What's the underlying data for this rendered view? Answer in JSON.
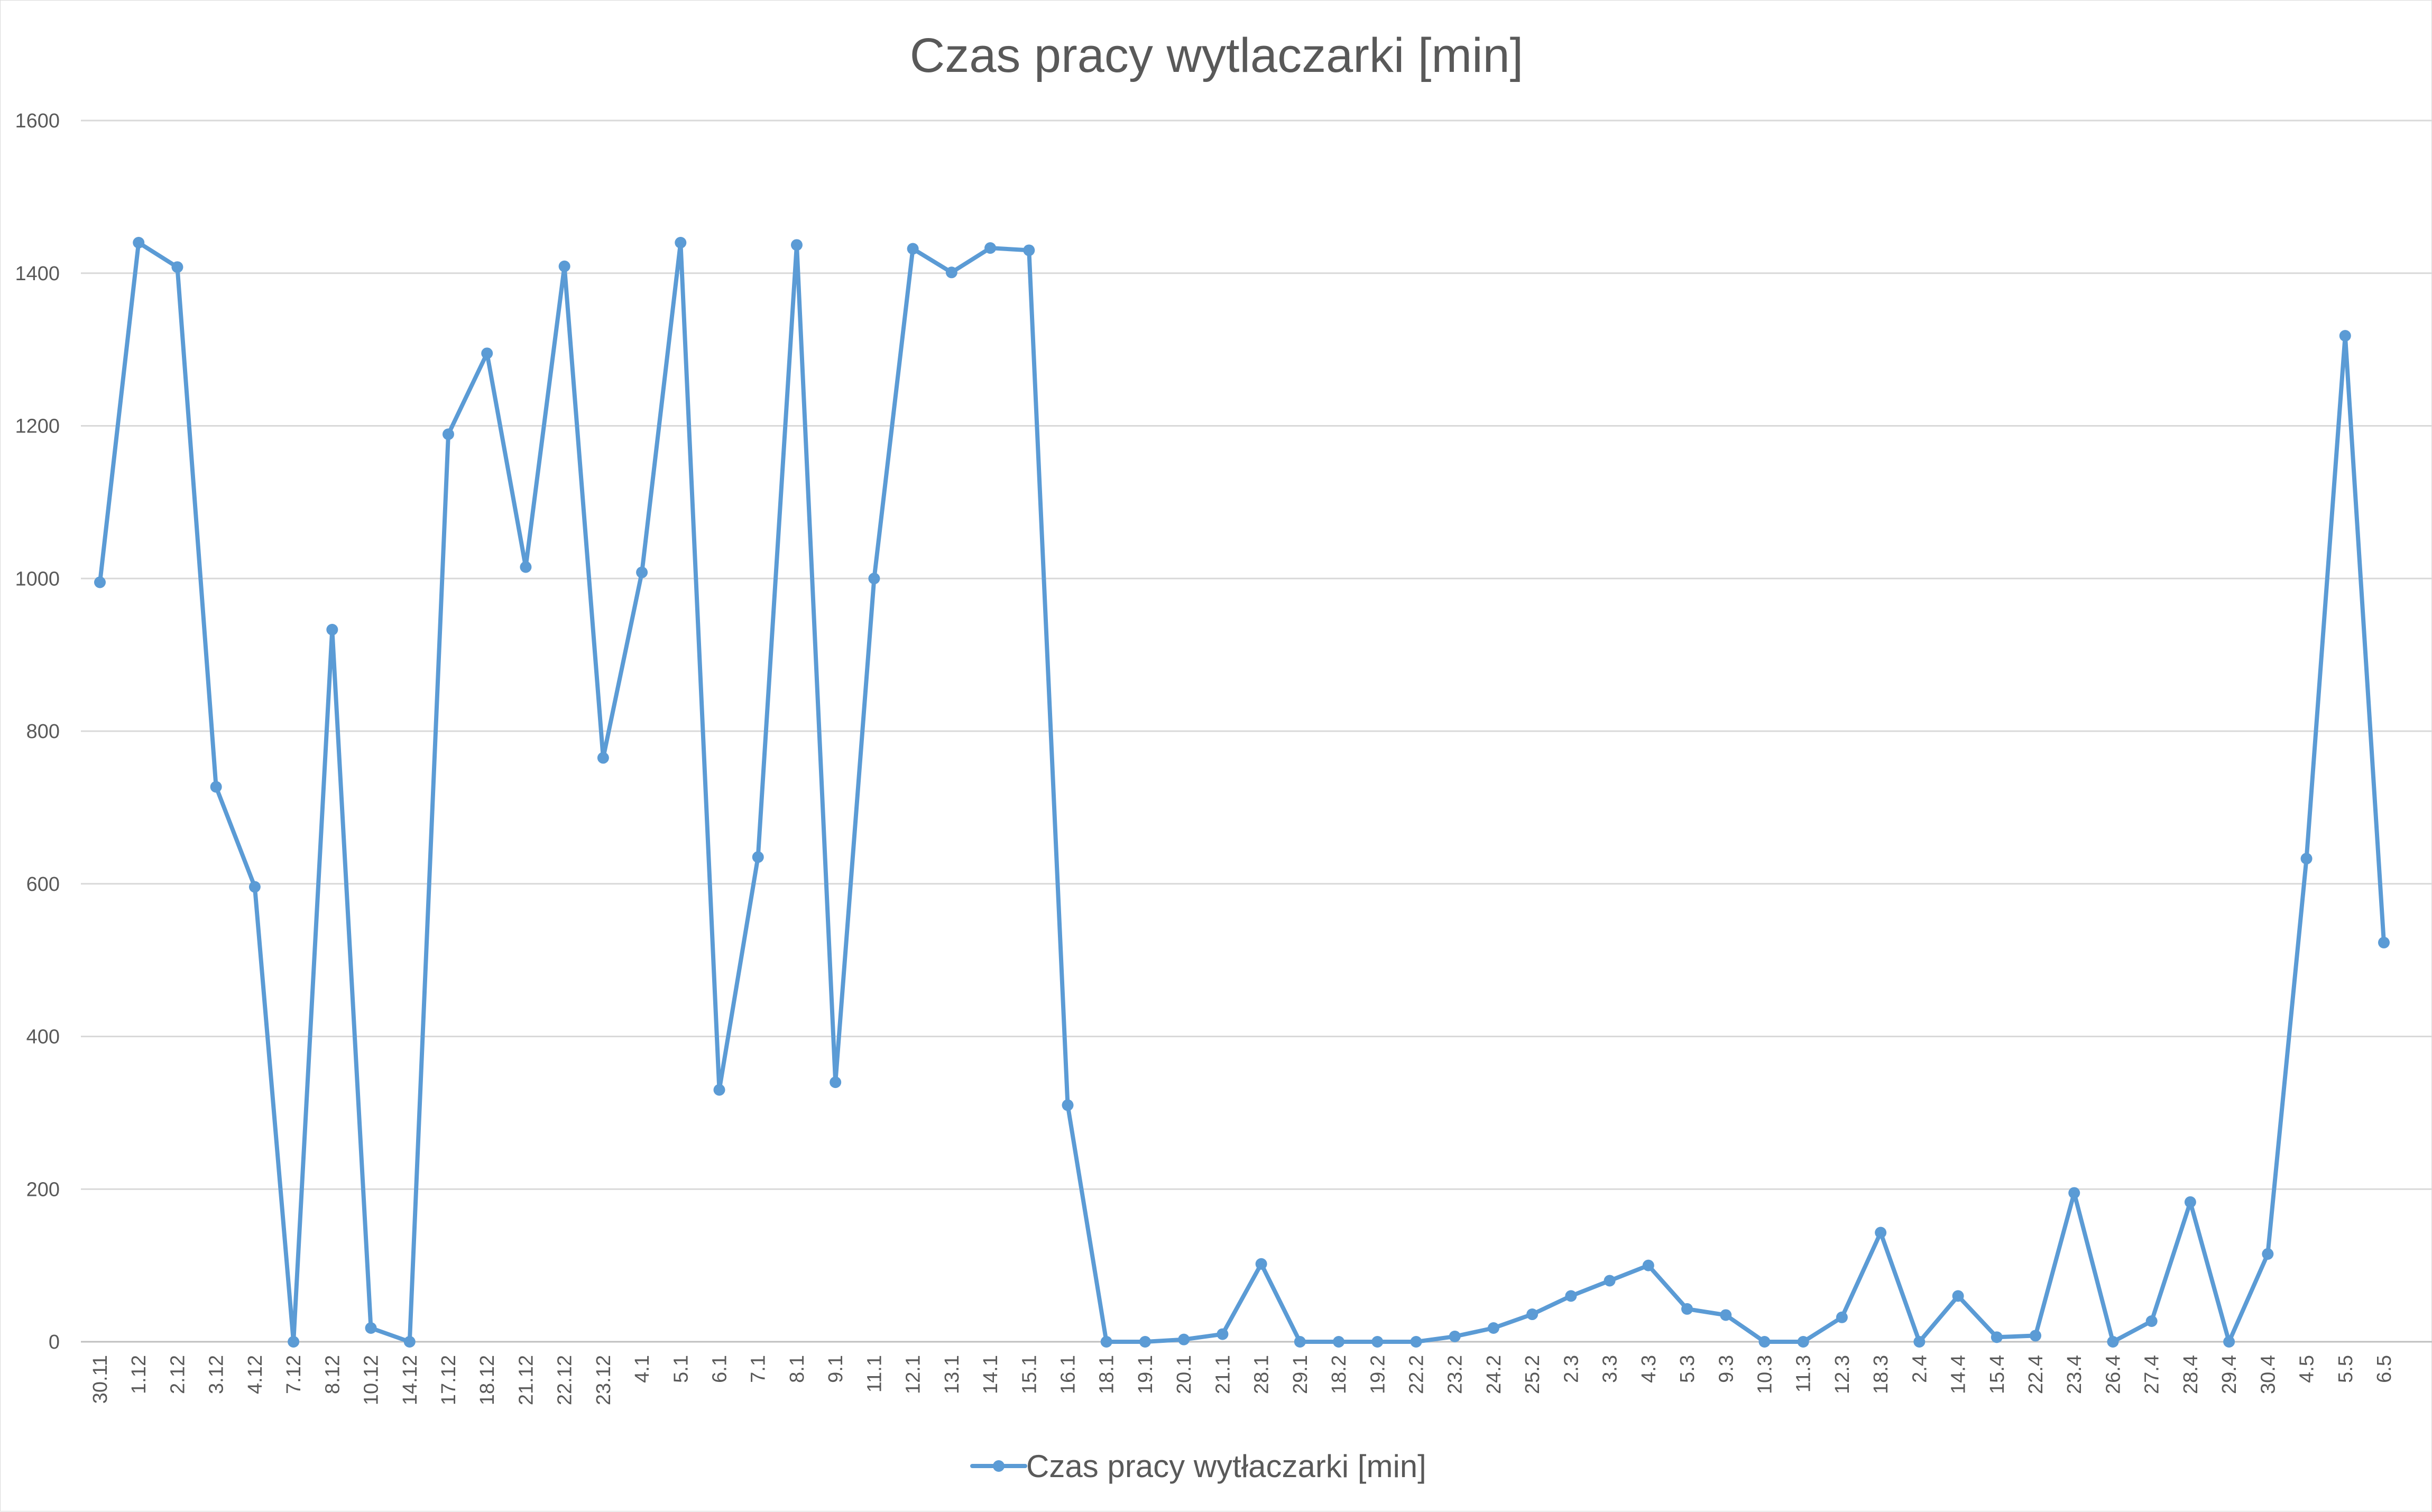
{
  "chart_data": {
    "type": "line",
    "title": "Czas pracy wytlaczarki [min]",
    "xlabel": "",
    "ylabel": "",
    "ylim": [
      0,
      1600
    ],
    "yticks": [
      0,
      200,
      400,
      600,
      800,
      1000,
      1200,
      1400,
      1600
    ],
    "grid": true,
    "legend_position": "bottom",
    "colors": {
      "series": "#5b9bd5",
      "grid": "#d9d9d9",
      "text": "#595959"
    },
    "categories": [
      "30.11",
      "1.12",
      "2.12",
      "3.12",
      "4.12",
      "7.12",
      "8.12",
      "10.12",
      "14.12",
      "17.12",
      "18.12",
      "21.12",
      "22.12",
      "23.12",
      "4.1",
      "5.1",
      "6.1",
      "7.1",
      "8.1",
      "9.1",
      "11.1",
      "12.1",
      "13.1",
      "14.1",
      "15.1",
      "16.1",
      "18.1",
      "19.1",
      "20.1",
      "21.1",
      "28.1",
      "29.1",
      "18.2",
      "19.2",
      "22.2",
      "23.2",
      "24.2",
      "25.2",
      "2.3",
      "3.3",
      "4.3",
      "5.3",
      "9.3",
      "10.3",
      "11.3",
      "12.3",
      "18.3",
      "2.4",
      "14.4",
      "15.4",
      "22.4",
      "23.4",
      "26.4",
      "27.4",
      "28.4",
      "29.4",
      "30.4",
      "4.5",
      "5.5",
      "6.5"
    ],
    "series": [
      {
        "name": "Czas pracy wytłaczarki [min]",
        "values": [
          995,
          1440,
          1408,
          727,
          596,
          0,
          933,
          18,
          0,
          1189,
          1295,
          1015,
          1409,
          765,
          1008,
          1440,
          330,
          635,
          1437,
          340,
          1000,
          1432,
          1401,
          1433,
          1430,
          310,
          0,
          0,
          3,
          10,
          102,
          0,
          0,
          0,
          0,
          7,
          18,
          36,
          60,
          80,
          100,
          43,
          35,
          0,
          0,
          32,
          143,
          0,
          60,
          6,
          8,
          195,
          0,
          27,
          183,
          0,
          115,
          633,
          1318,
          523
        ]
      }
    ]
  }
}
